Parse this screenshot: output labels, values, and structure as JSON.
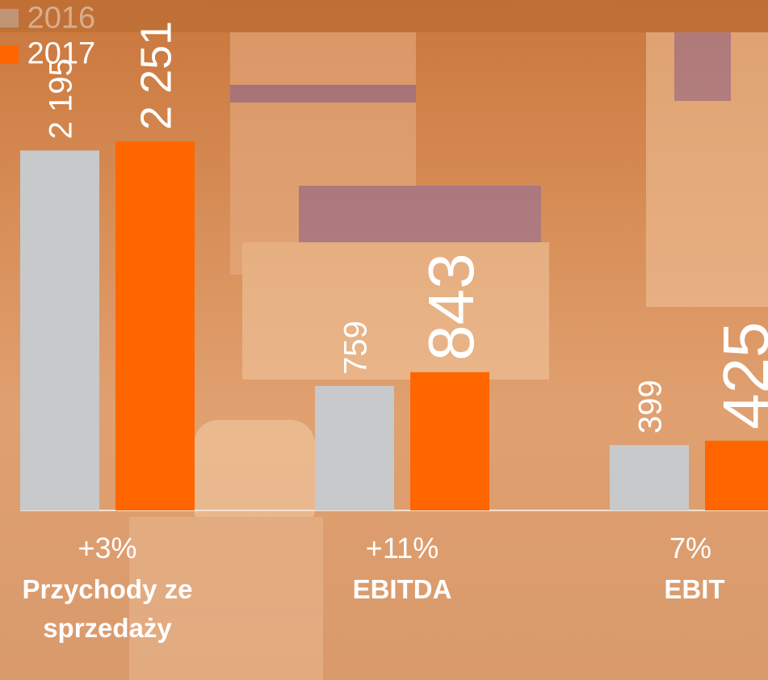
{
  "chart_data": {
    "type": "bar",
    "categories": [
      "Przychody ze sprzedaży",
      "EBITDA",
      "EBIT"
    ],
    "changes": [
      "+3%",
      "+11%",
      "7%"
    ],
    "series": [
      {
        "name": "2016",
        "color": "#c8c9cb",
        "values": [
          2195,
          759,
          399
        ],
        "value_labels": [
          "2 195",
          "759",
          "399"
        ]
      },
      {
        "name": "2017",
        "color": "#ff6600",
        "values": [
          2251,
          843,
          425
        ],
        "value_labels": [
          "2 251",
          "843",
          "425"
        ]
      }
    ]
  }
}
